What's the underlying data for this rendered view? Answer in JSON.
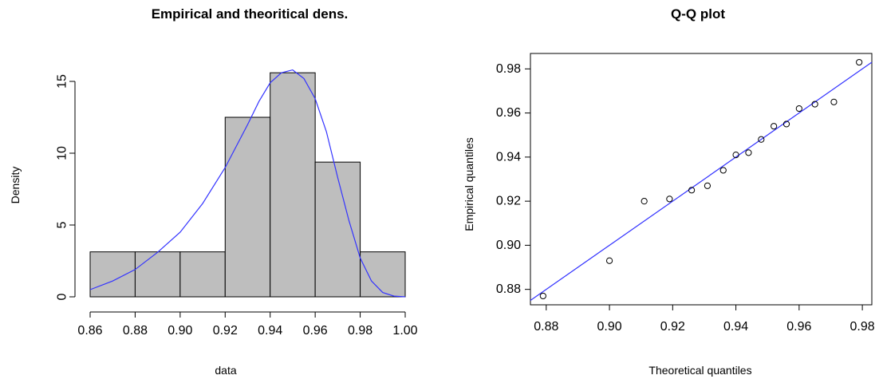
{
  "chart_data": [
    {
      "type": "bar",
      "title": "Empirical and theoritical dens.",
      "xlabel": "data",
      "ylabel": "Density",
      "xlim": [
        0.86,
        1.0
      ],
      "ylim": [
        0,
        16
      ],
      "x_ticks": [
        "0.86",
        "0.88",
        "0.90",
        "0.92",
        "0.94",
        "0.96",
        "0.98",
        "1.00"
      ],
      "y_ticks": [
        "0",
        "5",
        "10",
        "15"
      ],
      "bins": [
        {
          "from": 0.86,
          "to": 0.88,
          "density": 3.13
        },
        {
          "from": 0.88,
          "to": 0.9,
          "density": 3.13
        },
        {
          "from": 0.9,
          "to": 0.92,
          "density": 3.13
        },
        {
          "from": 0.92,
          "to": 0.94,
          "density": 12.5
        },
        {
          "from": 0.94,
          "to": 0.96,
          "density": 15.6
        },
        {
          "from": 0.96,
          "to": 0.98,
          "density": 9.38
        },
        {
          "from": 0.98,
          "to": 1.0,
          "density": 3.13
        }
      ],
      "bar_color": "#bebebe",
      "curve_color": "#3333ff",
      "density_curve": {
        "x": [
          0.86,
          0.87,
          0.88,
          0.89,
          0.9,
          0.91,
          0.92,
          0.93,
          0.935,
          0.94,
          0.945,
          0.95,
          0.955,
          0.96,
          0.965,
          0.97,
          0.975,
          0.98,
          0.985,
          0.99,
          0.995,
          1.0
        ],
        "y": [
          0.5,
          1.1,
          1.9,
          3.1,
          4.5,
          6.5,
          9.0,
          12.0,
          13.6,
          14.9,
          15.6,
          15.8,
          15.2,
          13.8,
          11.5,
          8.3,
          5.3,
          2.7,
          1.1,
          0.3,
          0.05,
          0.0
        ]
      }
    },
    {
      "type": "scatter",
      "title": "Q-Q plot",
      "xlabel": "Theoretical quantiles",
      "ylabel": "Empirical quantiles",
      "xlim": [
        0.875,
        0.983
      ],
      "ylim": [
        0.873,
        0.987
      ],
      "x_ticks": [
        "0.88",
        "0.90",
        "0.92",
        "0.94",
        "0.96",
        "0.98"
      ],
      "y_ticks": [
        "0.88",
        "0.90",
        "0.92",
        "0.94",
        "0.96",
        "0.98"
      ],
      "line_color": "#3333ff",
      "reference_line": {
        "x": [
          0.875,
          0.983
        ],
        "y": [
          0.875,
          0.983
        ]
      },
      "points": {
        "x": [
          0.879,
          0.9,
          0.911,
          0.919,
          0.926,
          0.931,
          0.936,
          0.94,
          0.944,
          0.948,
          0.952,
          0.956,
          0.96,
          0.965,
          0.971,
          0.979
        ],
        "y": [
          0.877,
          0.893,
          0.92,
          0.921,
          0.925,
          0.927,
          0.934,
          0.941,
          0.942,
          0.948,
          0.954,
          0.955,
          0.962,
          0.964,
          0.965,
          0.983
        ]
      }
    }
  ]
}
